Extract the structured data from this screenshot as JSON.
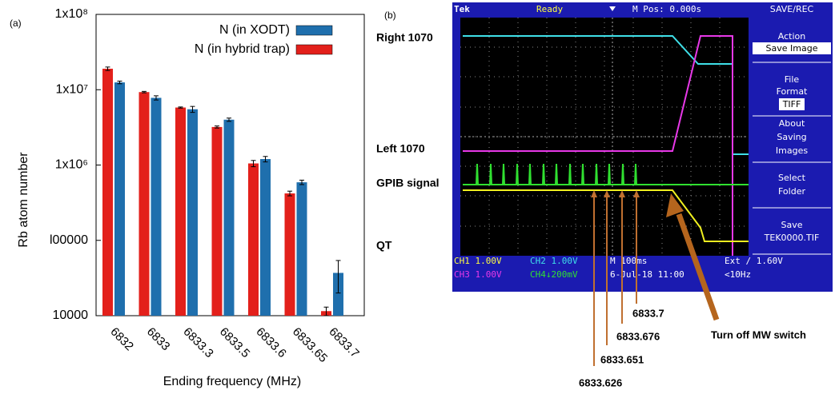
{
  "chart_data": {
    "type": "bar",
    "label": "(a)",
    "xlabel": "Ending frequency (MHz)",
    "ylabel": "Rb atom number",
    "categories": [
      "6832",
      "6833",
      "6833.3",
      "6833.5",
      "6833.6",
      "6833.65",
      "6833.7"
    ],
    "series": [
      {
        "name": "N (in XODT)",
        "color": "#1f6fad",
        "values": [
          12500000,
          7800000,
          5500000,
          4000000,
          1200000,
          590000,
          37000
        ],
        "errors": [
          500000,
          500000,
          500000,
          200000,
          100000,
          40000,
          17000
        ]
      },
      {
        "name": "N (in hybrid trap)",
        "color": "#e3201b",
        "values": [
          19000000,
          9300000,
          5800000,
          3200000,
          1050000,
          420000,
          11500
        ],
        "errors": [
          1000000,
          200000,
          100000,
          100000,
          100000,
          30000,
          1500
        ]
      }
    ],
    "log_y": true,
    "ylim": [
      10000,
      100000000
    ],
    "yticks": [
      10000,
      {
        "value": 100000,
        "label": "l00000"
      },
      {
        "value": 1000000,
        "label": "1x10⁶"
      },
      {
        "value": 10000000,
        "label": "1x10⁷"
      },
      {
        "value": 100000000,
        "label": "1x10⁸"
      }
    ],
    "legend": "upper right",
    "grid": false
  },
  "panel_b": {
    "label": "(b)",
    "channel_labels": [
      "Right 1070",
      "Left 1070",
      "GPIB signal",
      "QT"
    ],
    "annotations": [
      "6833.7",
      "6833.676",
      "6833.651",
      "6833.626",
      "Turn off MW switch"
    ],
    "scope": {
      "top": [
        "Tek",
        "Ready",
        "M Pos: 0.000s",
        "SAVE/REC"
      ],
      "menu": [
        "Action",
        "Save Image",
        "File",
        "Format",
        "TIFF",
        "About",
        "Saving",
        "Images",
        "Select",
        "Folder",
        "Save",
        "TEK0000.TIF"
      ],
      "status": [
        "CH1  1.00V",
        "CH2  1.00V",
        "M 100ms",
        "Ext ∕ 1.60V",
        "CH3  1.00V",
        "CH4↓200mV",
        "6-Jul-18 11:00",
        "<10Hz"
      ]
    }
  }
}
